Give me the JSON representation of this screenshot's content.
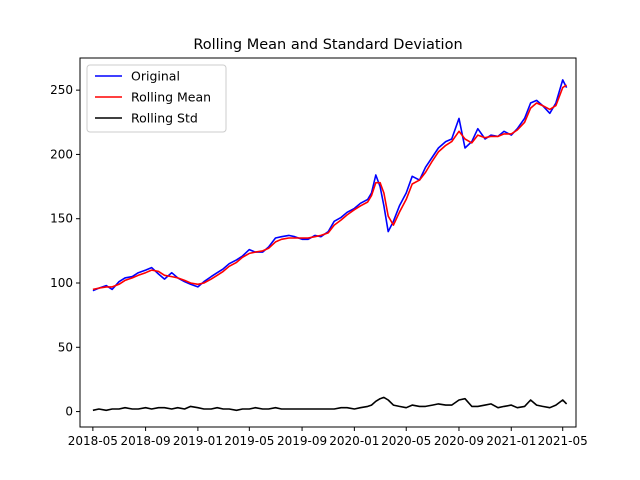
{
  "chart_data": {
    "type": "line",
    "title": "Rolling Mean and Standard Deviation",
    "xlabel": "",
    "ylabel": "",
    "x_ticks": [
      "2018-05",
      "2018-09",
      "2019-01",
      "2019-05",
      "2019-09",
      "2020-01",
      "2020-05",
      "2020-09",
      "2021-01",
      "2021-05"
    ],
    "y_ticks": [
      0,
      50,
      100,
      150,
      200,
      250
    ],
    "xlim": [
      "2018-04-01",
      "2021-06-01"
    ],
    "ylim": [
      -12,
      275
    ],
    "grid": false,
    "legend": {
      "position": "top-left",
      "entries": [
        "Original",
        "Rolling Mean",
        "Rolling Std"
      ]
    },
    "x": [
      "2018-05-01",
      "2018-05-15",
      "2018-06-01",
      "2018-06-15",
      "2018-07-01",
      "2018-07-15",
      "2018-08-01",
      "2018-08-15",
      "2018-09-01",
      "2018-09-15",
      "2018-10-01",
      "2018-10-15",
      "2018-11-01",
      "2018-11-15",
      "2018-12-01",
      "2018-12-15",
      "2019-01-01",
      "2019-01-15",
      "2019-02-01",
      "2019-02-15",
      "2019-03-01",
      "2019-03-15",
      "2019-04-01",
      "2019-04-15",
      "2019-05-01",
      "2019-05-15",
      "2019-06-01",
      "2019-06-15",
      "2019-07-01",
      "2019-07-15",
      "2019-08-01",
      "2019-08-15",
      "2019-09-01",
      "2019-09-15",
      "2019-10-01",
      "2019-10-15",
      "2019-11-01",
      "2019-11-15",
      "2019-12-01",
      "2019-12-15",
      "2020-01-01",
      "2020-01-15",
      "2020-02-01",
      "2020-02-10",
      "2020-02-20",
      "2020-03-01",
      "2020-03-10",
      "2020-03-20",
      "2020-04-01",
      "2020-04-15",
      "2020-05-01",
      "2020-05-15",
      "2020-06-01",
      "2020-06-15",
      "2020-07-01",
      "2020-07-15",
      "2020-08-01",
      "2020-08-15",
      "2020-09-01",
      "2020-09-15",
      "2020-10-01",
      "2020-10-15",
      "2020-11-01",
      "2020-11-15",
      "2020-12-01",
      "2020-12-15",
      "2021-01-01",
      "2021-01-15",
      "2021-02-01",
      "2021-02-15",
      "2021-03-01",
      "2021-03-15",
      "2021-04-01",
      "2021-04-15",
      "2021-05-01",
      "2021-05-10"
    ],
    "series": [
      {
        "name": "Original",
        "color": "#0000ff",
        "values": [
          94,
          96,
          98,
          95,
          101,
          104,
          105,
          108,
          110,
          112,
          107,
          103,
          108,
          104,
          101,
          99,
          97,
          101,
          105,
          108,
          111,
          115,
          118,
          121,
          126,
          124,
          124,
          128,
          135,
          136,
          137,
          136,
          134,
          134,
          137,
          136,
          140,
          148,
          151,
          155,
          158,
          162,
          165,
          170,
          184,
          175,
          160,
          140,
          148,
          160,
          170,
          183,
          180,
          190,
          198,
          205,
          210,
          212,
          228,
          205,
          210,
          220,
          212,
          215,
          214,
          218,
          215,
          220,
          228,
          240,
          242,
          238,
          232,
          240,
          258,
          252
        ]
      },
      {
        "name": "Rolling Mean",
        "color": "#ff0000",
        "values": [
          95,
          96,
          97,
          97,
          99,
          102,
          104,
          106,
          108,
          110,
          109,
          106,
          105,
          104,
          102,
          100,
          99,
          100,
          103,
          106,
          109,
          113,
          116,
          120,
          123,
          124,
          125,
          127,
          132,
          134,
          135,
          135,
          135,
          135,
          136,
          137,
          139,
          145,
          149,
          153,
          157,
          160,
          163,
          168,
          178,
          178,
          170,
          152,
          145,
          155,
          165,
          177,
          180,
          186,
          195,
          202,
          207,
          210,
          218,
          212,
          209,
          215,
          213,
          214,
          214,
          216,
          216,
          219,
          225,
          236,
          240,
          238,
          235,
          238,
          252,
          254
        ]
      },
      {
        "name": "Rolling Std",
        "color": "#000000",
        "values": [
          1,
          2,
          1,
          2,
          2,
          3,
          2,
          2,
          3,
          2,
          3,
          3,
          2,
          3,
          2,
          4,
          3,
          2,
          2,
          3,
          2,
          2,
          1,
          2,
          2,
          3,
          2,
          2,
          3,
          2,
          2,
          2,
          2,
          2,
          2,
          2,
          2,
          2,
          3,
          3,
          2,
          3,
          4,
          5,
          8,
          10,
          11,
          9,
          5,
          4,
          3,
          5,
          4,
          4,
          5,
          6,
          5,
          5,
          9,
          10,
          4,
          4,
          5,
          6,
          3,
          4,
          5,
          3,
          4,
          9,
          5,
          4,
          3,
          5,
          9,
          6
        ]
      }
    ]
  }
}
